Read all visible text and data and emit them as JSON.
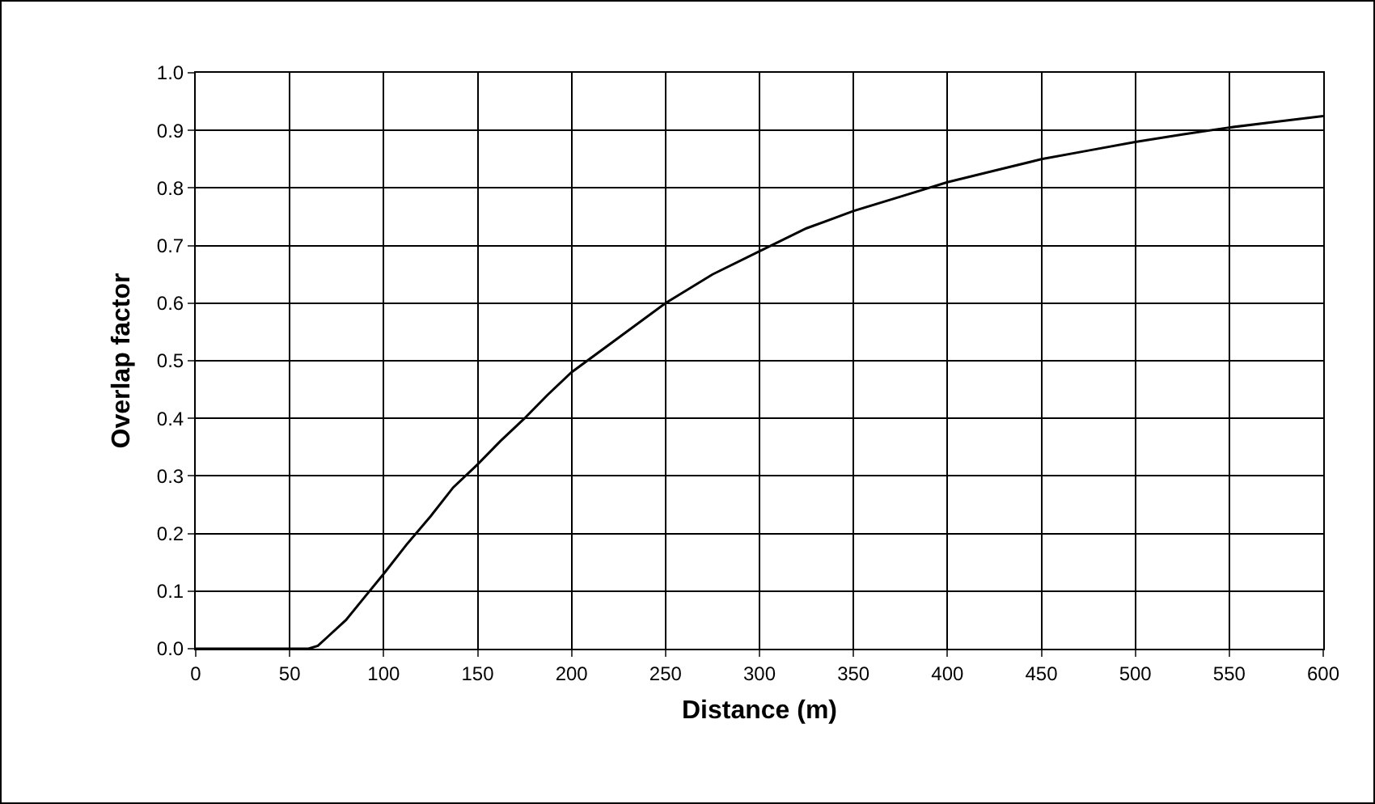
{
  "chart_data": {
    "type": "line",
    "xlabel": "Distance (m)",
    "ylabel": "Overlap factor",
    "x": [
      0,
      50,
      60,
      65,
      70,
      80,
      90,
      100,
      112,
      125,
      137,
      150,
      162,
      175,
      187,
      200,
      225,
      250,
      275,
      300,
      325,
      350,
      375,
      400,
      425,
      450,
      475,
      500,
      525,
      550,
      575,
      600
    ],
    "series": [
      {
        "color": "#000000",
        "values": [
          0,
          0,
          0,
          0.005,
          0.02,
          0.05,
          0.09,
          0.13,
          0.18,
          0.23,
          0.28,
          0.32,
          0.36,
          0.4,
          0.44,
          0.48,
          0.54,
          0.6,
          0.65,
          0.69,
          0.73,
          0.76,
          0.785,
          0.81,
          0.83,
          0.85,
          0.865,
          0.88,
          0.893,
          0.905,
          0.915,
          0.925
        ]
      }
    ],
    "xlim": [
      0,
      600
    ],
    "xticks": [
      0,
      50,
      100,
      150,
      200,
      250,
      300,
      350,
      400,
      450,
      500,
      550,
      600
    ],
    "ylim": [
      0,
      1
    ],
    "yticks": [
      {
        "value": 0,
        "label": "0.0"
      },
      {
        "value": 0.1,
        "label": "0.1"
      },
      {
        "value": 0.2,
        "label": "0.2"
      },
      {
        "value": 0.3,
        "label": "0.3"
      },
      {
        "value": 0.4,
        "label": "0.4"
      },
      {
        "value": 0.5,
        "label": "0.5"
      },
      {
        "value": 0.6,
        "label": "0.6"
      },
      {
        "value": 0.7,
        "label": "0.7"
      },
      {
        "value": 0.8,
        "label": "0.8"
      },
      {
        "value": 0.9,
        "label": "0.9"
      },
      {
        "value": 1,
        "label": "1.0"
      }
    ],
    "grid": true,
    "marker": "none",
    "line_style": "solid"
  }
}
